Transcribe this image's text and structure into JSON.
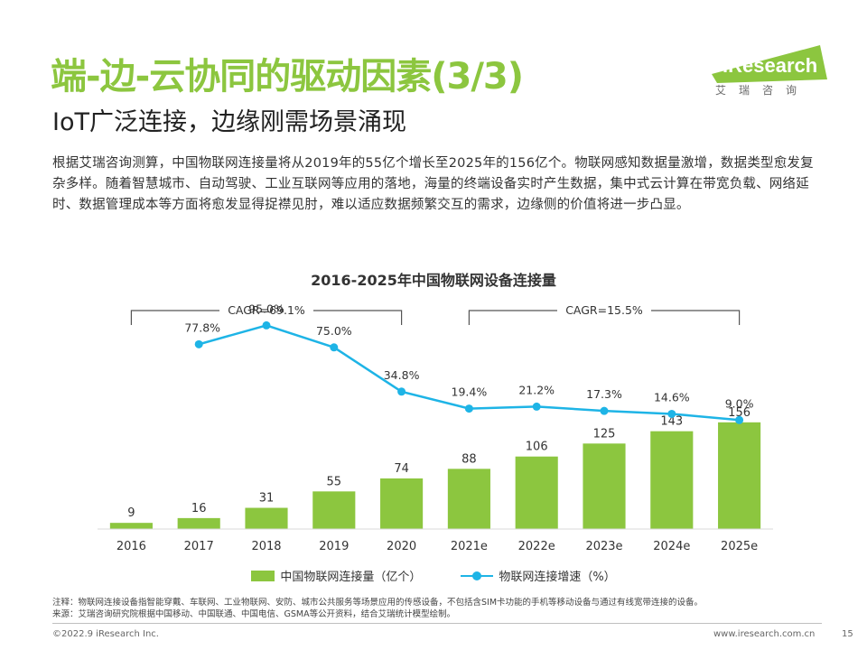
{
  "header": {
    "title": "端-边-云协同的驱动因素(3/3)",
    "subtitle": "IoT广泛连接，边缘刚需场景涌现"
  },
  "logo": {
    "brand": "iResearch",
    "brand_cn": "艾瑞咨询",
    "brand_color": "#8cc63f"
  },
  "intro": "根据艾瑞咨询测算，中国物联网连接量将从2019年的55亿个增长至2025年的156亿个。物联网感知数据量激增，数据类型愈发复杂多样。随着智慧城市、自动驾驶、工业互联网等应用的落地，海量的终端设备实时产生数据，集中式云计算在带宽负载、网络延时、数据管理成本等方面将愈发显得捉襟见肘，难以适应数据频繁交互的需求，边缘侧的价值将进一步凸显。",
  "chart_data": {
    "type": "bar",
    "title": "2016-2025年中国物联网设备连接量",
    "categories": [
      "2016",
      "2017",
      "2018",
      "2019",
      "2020",
      "2021e",
      "2022e",
      "2023e",
      "2024e",
      "2025e"
    ],
    "series": [
      {
        "name": "中国物联网连接量（亿个）",
        "type": "bar",
        "values": [
          9,
          16,
          31,
          55,
          74,
          88,
          106,
          125,
          143,
          156
        ],
        "labels": [
          "9",
          "16",
          "31",
          "55",
          "74",
          "88",
          "106",
          "125",
          "143",
          "156"
        ],
        "color": "#8cc63f"
      },
      {
        "name": "物联网连接增速（%）",
        "type": "line",
        "values": [
          null,
          77.8,
          95.0,
          75.0,
          34.8,
          19.4,
          21.2,
          17.3,
          14.6,
          9.0
        ],
        "labels": [
          "",
          "77.8%",
          "95.0%",
          "75.0%",
          "34.8%",
          "19.4%",
          "21.2%",
          "17.3%",
          "14.6%",
          "9.0%"
        ],
        "color": "#1eb4e6"
      }
    ],
    "annotations": [
      {
        "text": "CAGR=69.1%",
        "from": "2016",
        "to": "2020"
      },
      {
        "text": "CAGR=15.5%",
        "from": "2021e",
        "to": "2025e"
      }
    ],
    "bar_ylim": [
      0,
      330
    ],
    "line_ylim": [
      -90,
      115
    ],
    "grid": false,
    "legend_position": "bottom"
  },
  "notes": {
    "note": "注释：物联网连接设备指智能穿戴、车联网、工业物联网、安防、城市公共服务等场景应用的传感设备，不包括含SIM卡功能的手机等移动设备与通过有线宽带连接的设备。",
    "source": "来源：艾瑞咨询研究院根据中国移动、中国联通、中国电信、GSMA等公开资料，结合艾瑞统计模型绘制。"
  },
  "footer": {
    "copyright": "©2022.9 iResearch Inc.",
    "website": "www.iresearch.com.cn",
    "page": "15"
  }
}
